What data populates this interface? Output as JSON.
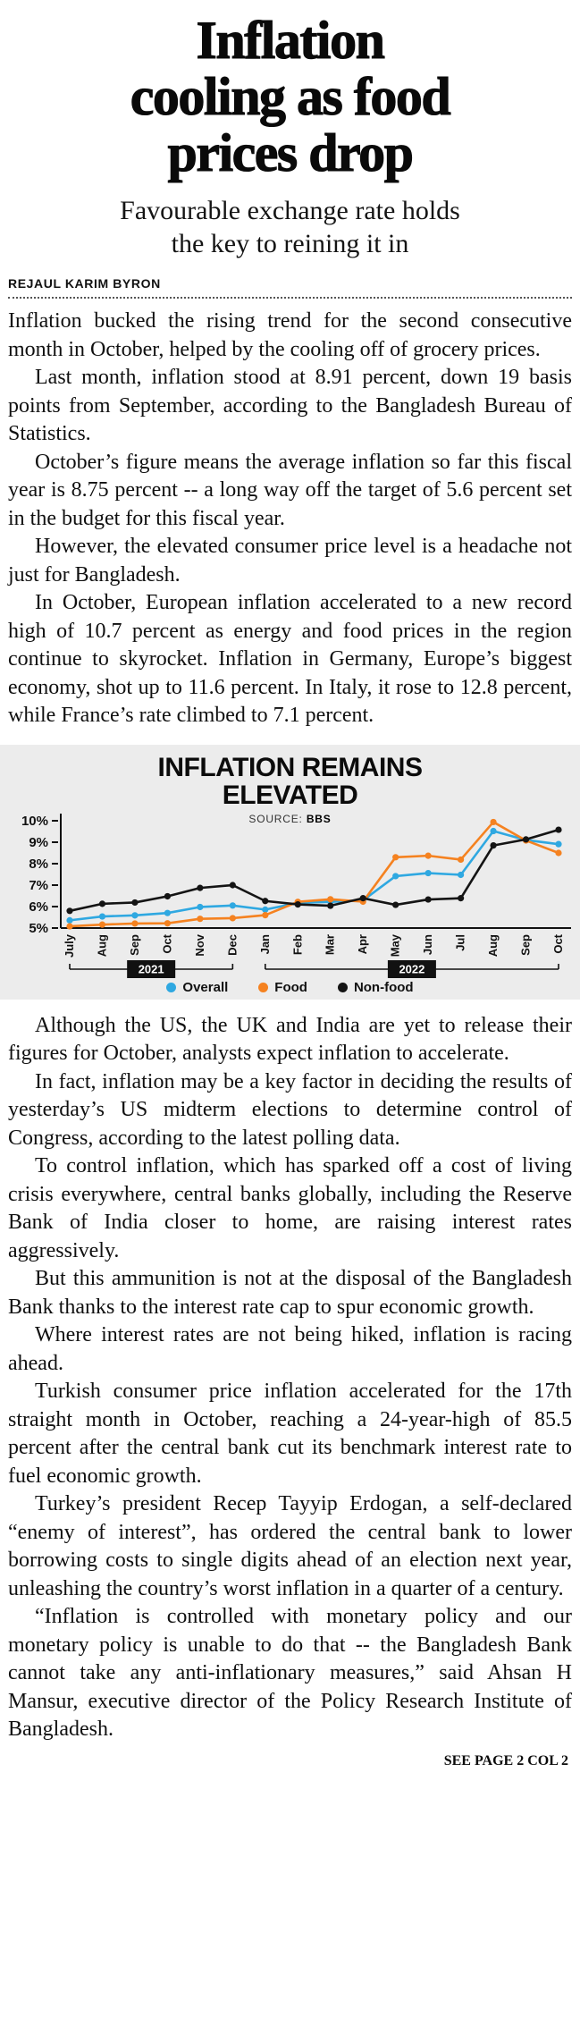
{
  "article": {
    "headline_lines": [
      "Inflation",
      "cooling as food",
      "prices drop"
    ],
    "subhead_lines": [
      "Favourable exchange rate holds",
      "the key to reining it in"
    ],
    "byline": "REJAUL KARIM BYRON",
    "paragraphs_before_chart": [
      "Inflation bucked the rising trend for the second consecutive month in October, helped by the cooling off of grocery prices.",
      "Last month, inflation stood at 8.91 percent, down 19 basis points from September, according to the Bangladesh Bureau of Statistics.",
      "October’s figure means the average inflation so far this fiscal year is 8.75 percent -- a long way off the target of 5.6 percent set in the budget for this fiscal year.",
      "However, the elevated consumer price level is a headache not just for Bangladesh.",
      "In October, European inflation accelerated to a new record high of 10.7 percent as energy and food prices in the region continue to skyrocket. Inflation in Germany, Europe’s biggest economy, shot up to 11.6 percent. In Italy, it rose to 12.8 percent, while France’s rate climbed to 7.1 percent."
    ],
    "paragraphs_after_chart": [
      "Although the US, the UK and India are yet to release their figures for October, analysts expect inflation to accelerate.",
      "In fact, inflation may be a key factor in deciding the results of yesterday’s US midterm elections to determine control of Congress, according to the latest polling data.",
      "To control inflation, which has sparked off a cost of living crisis everywhere, central banks globally, including the Reserve Bank of India closer to home, are raising interest rates aggressively.",
      "But this ammunition is not at the disposal of the Bangladesh Bank thanks to the interest rate cap to spur economic growth.",
      "Where interest rates are not being hiked, inflation is racing ahead.",
      "Turkish consumer price inflation accelerated for the 17th straight month in October, reaching a 24-year-high of 85.5 percent after the central bank cut its benchmark interest rate to fuel economic growth.",
      "Turkey’s president Recep Tayyip Erdogan, a self-declared “enemy of interest”, has ordered the central bank to lower borrowing costs to single digits ahead of an election next year, unleashing the country’s worst inflation in a quarter of a century.",
      "“Inflation is controlled with monetary policy and our monetary policy is unable to do that -- the Bangladesh Bank cannot take any anti-inflationary measures,” said Ahsan H Mansur, executive director of the Policy Research Institute of Bangladesh."
    ],
    "continuation": "SEE PAGE 2 COL 2"
  },
  "chart_data": {
    "type": "line",
    "title_lines": [
      "INFLATION REMAINS",
      "ELEVATED"
    ],
    "source_label": "SOURCE:",
    "source_value": "BBS",
    "x": [
      "July",
      "Aug",
      "Sep",
      "Oct",
      "Nov",
      "Dec",
      "Jan",
      "Feb",
      "Mar",
      "Apr",
      "May",
      "Jun",
      "Jul",
      "Aug",
      "Sep",
      "Oct"
    ],
    "year_groups": [
      {
        "label": "2021",
        "from": 0,
        "to": 5
      },
      {
        "label": "2022",
        "from": 6,
        "to": 15
      }
    ],
    "ylabel": "percent",
    "ylim": [
      5,
      10
    ],
    "ytick_suffix": "%",
    "grid": false,
    "legend_position": "bottom",
    "series": [
      {
        "name": "Overall",
        "color": "#2fa8e1",
        "values": [
          5.36,
          5.54,
          5.59,
          5.7,
          5.98,
          6.05,
          5.86,
          6.17,
          6.22,
          6.29,
          7.42,
          7.56,
          7.48,
          9.52,
          9.1,
          8.91
        ]
      },
      {
        "name": "Food",
        "color": "#f58220",
        "values": [
          5.08,
          5.16,
          5.21,
          5.22,
          5.43,
          5.46,
          5.6,
          6.22,
          6.34,
          6.23,
          8.3,
          8.37,
          8.19,
          9.94,
          9.08,
          8.5
        ]
      },
      {
        "name": "Non-food",
        "color": "#141414",
        "values": [
          5.8,
          6.13,
          6.19,
          6.48,
          6.87,
          7.0,
          6.26,
          6.1,
          6.04,
          6.39,
          6.08,
          6.33,
          6.39,
          8.85,
          9.13,
          9.58
        ]
      }
    ]
  }
}
